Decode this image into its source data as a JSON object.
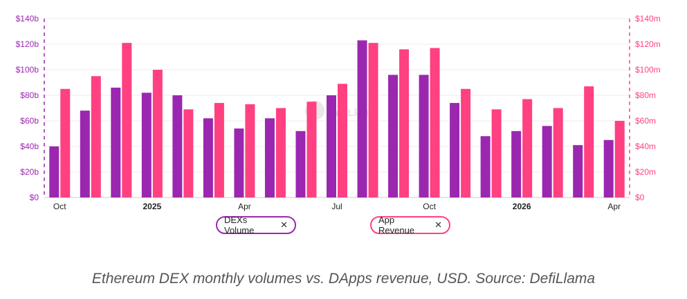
{
  "caption": "Ethereum DEX monthly volumes vs. DApps revenue, USD. Source: DefiLlama",
  "legend": {
    "series_a_label": "DEXs Volume",
    "series_b_label": "App Revenue",
    "close_glyph": "✕"
  },
  "watermark": "DefiLlama",
  "colors": {
    "dex": "#9b27b0",
    "app": "#ff4081",
    "left_axis": "#9b27b0",
    "right_axis": "#ff4081",
    "grid": "#eeeeee"
  },
  "chart_data": {
    "type": "bar",
    "x_tick_labels": [
      {
        "index": 0,
        "label": "Oct",
        "bold": false
      },
      {
        "index": 3,
        "label": "2025",
        "bold": true
      },
      {
        "index": 6,
        "label": "Apr",
        "bold": false
      },
      {
        "index": 9,
        "label": "Jul",
        "bold": false
      },
      {
        "index": 12,
        "label": "Oct",
        "bold": false
      },
      {
        "index": 15,
        "label": "2026",
        "bold": true
      },
      {
        "index": 18,
        "label": "Apr",
        "bold": false
      }
    ],
    "left_axis": {
      "ticks": [
        "$0",
        "$20b",
        "$40b",
        "$60b",
        "$80b",
        "$100b",
        "$120b",
        "$140b"
      ],
      "ylim": [
        0,
        140
      ],
      "unit": "b"
    },
    "right_axis": {
      "ticks": [
        "$0",
        "$20m",
        "$40m",
        "$60m",
        "$80m",
        "$100m",
        "$120m",
        "$140m"
      ],
      "ylim": [
        0,
        140
      ],
      "unit": "m"
    },
    "series": [
      {
        "name": "DEXs Volume",
        "axis": "left",
        "values": [
          40,
          68,
          86,
          82,
          80,
          62,
          54,
          62,
          52,
          80,
          123,
          96,
          96,
          74,
          48,
          52,
          56,
          41,
          45
        ]
      },
      {
        "name": "App Revenue",
        "axis": "right",
        "values": [
          85,
          95,
          121,
          100,
          69,
          74,
          73,
          70,
          75,
          89,
          121,
          116,
          117,
          85,
          69,
          77,
          70,
          87,
          60
        ]
      }
    ],
    "grid": true
  }
}
